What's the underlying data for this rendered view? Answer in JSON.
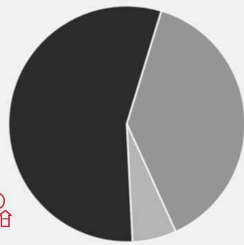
{
  "chart_data": {
    "type": "pie",
    "title": "",
    "legend": "none",
    "slices": [
      {
        "value": 55.5,
        "color": "#2a2a2a"
      },
      {
        "value": 38.5,
        "color": "#959595"
      },
      {
        "value": 6.0,
        "color": "#b4b4b4"
      }
    ]
  },
  "colors": {
    "background": "#f0f0f0",
    "slice_border": "#f5f5f5",
    "mascot": "#d32f3a"
  },
  "icons": {
    "edge_mascot": "red-outline-mascot-icon"
  }
}
